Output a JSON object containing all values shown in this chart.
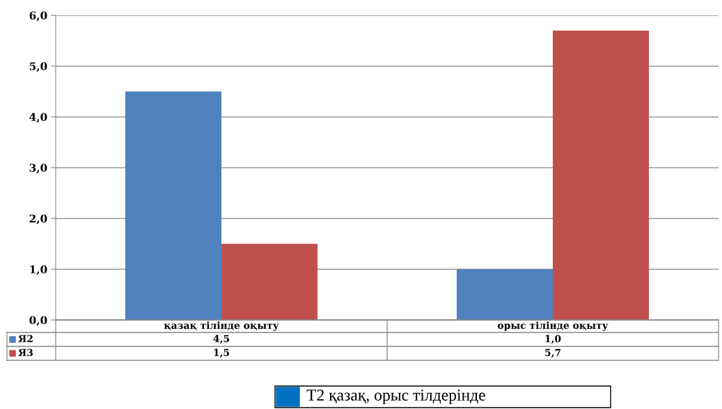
{
  "chart_data": {
    "type": "bar",
    "categories": [
      "қазақ тілінде оқыту",
      "орыс тілінде оқыту"
    ],
    "series": [
      {
        "name": "Я2",
        "color": "#4f81bd",
        "values": [
          4.5,
          1.0
        ],
        "value_labels": [
          "4,5",
          "1,0"
        ]
      },
      {
        "name": "Я3",
        "color": "#c0504d",
        "values": [
          1.5,
          5.7
        ],
        "value_labels": [
          "1,5",
          "5,7"
        ]
      }
    ],
    "ylim": [
      0,
      6
    ],
    "yticks": [
      {
        "value": 0,
        "label": "0,0"
      },
      {
        "value": 1,
        "label": "1,0"
      },
      {
        "value": 2,
        "label": "2,0"
      },
      {
        "value": 3,
        "label": "3,0"
      },
      {
        "value": 4,
        "label": "4,0"
      },
      {
        "value": 5,
        "label": "5,0"
      },
      {
        "value": 6,
        "label": "6,0"
      }
    ],
    "grid": "y",
    "legend": "bottom left",
    "annotations": [
      "Т2 қазақ, орыс тілдерінде"
    ]
  }
}
